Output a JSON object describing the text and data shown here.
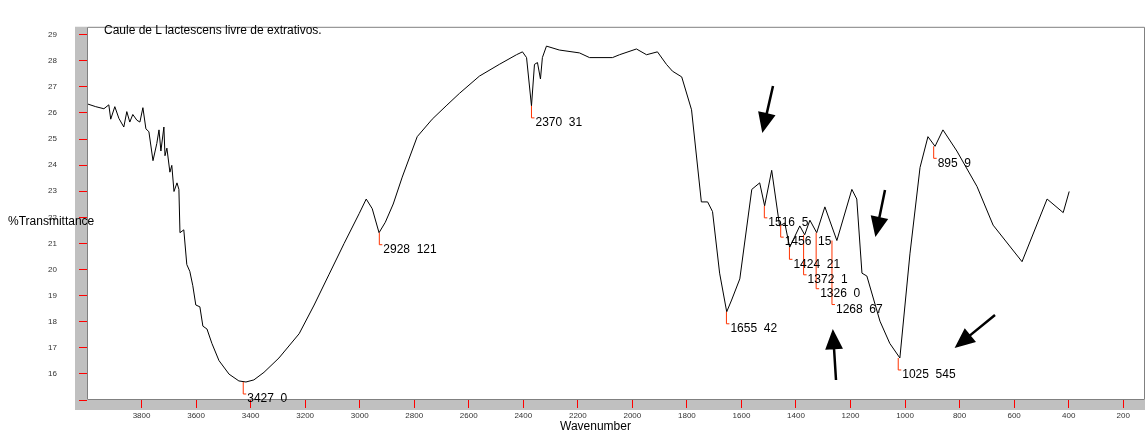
{
  "chart_data": {
    "type": "line",
    "title": "Caule de L lactescens livre de extrativos.",
    "xlabel": "Wavenumber",
    "ylabel": "%Transmittance",
    "x": [
      4000,
      3968,
      3938,
      3920,
      3913,
      3898,
      3883,
      3865,
      3854,
      3843,
      3832,
      3817,
      3806,
      3795,
      3784,
      3773,
      3758,
      3744,
      3736,
      3729,
      3718,
      3714,
      3707,
      3696,
      3689,
      3681,
      3670,
      3663,
      3659,
      3645,
      3634,
      3623,
      3612,
      3601,
      3586,
      3575,
      3560,
      3542,
      3516,
      3479,
      3443,
      3417,
      3388,
      3351,
      3296,
      3222,
      3167,
      3112,
      3057,
      3002,
      2976,
      2954,
      2929,
      2906,
      2877,
      2844,
      2789,
      2734,
      2683,
      2634,
      2561,
      2488,
      2425,
      2403,
      2388,
      2370,
      2359,
      2348,
      2337,
      2330,
      2315,
      2268,
      2194,
      2157,
      2073,
      2047,
      1985,
      1948,
      1908,
      1875,
      1853,
      1819,
      1783,
      1747,
      1724,
      1706,
      1680,
      1654,
      1636,
      1606,
      1562,
      1533,
      1515,
      1489,
      1460,
      1441,
      1423,
      1386,
      1368,
      1349,
      1324,
      1294,
      1250,
      1195,
      1177,
      1158,
      1140,
      1092,
      1056,
      1019,
      982,
      945,
      916,
      890,
      861,
      810,
      736,
      677,
      571,
      479,
      420,
      398
    ],
    "series": [
      {
        "color": "#000000",
        "values": [
          26.35,
          26.24,
          26.16,
          26.31,
          25.76,
          26.24,
          25.79,
          25.46,
          26.05,
          25.65,
          25.94,
          25.72,
          25.65,
          26.2,
          25.39,
          25.28,
          24.17,
          24.83,
          25.35,
          24.54,
          25.46,
          24.36,
          24.65,
          23.73,
          23.99,
          22.99,
          23.32,
          23.07,
          21.41,
          21.52,
          20.19,
          19.93,
          19.38,
          18.64,
          18.57,
          17.83,
          17.72,
          17.17,
          16.51,
          15.99,
          15.73,
          15.69,
          15.77,
          16.06,
          16.61,
          17.54,
          18.64,
          19.82,
          21.0,
          22.14,
          22.7,
          22.33,
          21.41,
          21.81,
          22.51,
          23.54,
          25.09,
          25.76,
          26.27,
          26.75,
          27.41,
          27.86,
          28.23,
          28.34,
          28.12,
          26.27,
          27.86,
          27.93,
          27.3,
          28.12,
          28.56,
          28.41,
          28.3,
          28.12,
          28.12,
          28.23,
          28.45,
          28.23,
          28.34,
          27.86,
          27.6,
          27.38,
          26.12,
          22.59,
          22.59,
          22.22,
          19.86,
          18.38,
          18.83,
          19.64,
          23.07,
          23.32,
          22.44,
          23.8,
          21.67,
          21.78,
          20.85,
          21.67,
          21.33,
          21.89,
          21.41,
          22.4,
          21.11,
          23.07,
          22.7,
          19.86,
          19.75,
          18.02,
          17.17,
          16.61,
          20.6,
          23.91,
          25.09,
          24.72,
          25.35,
          24.54,
          23.18,
          21.7,
          20.3,
          22.7,
          22.18,
          22.99
        ]
      }
    ],
    "xlim": [
      4000,
      120
    ],
    "xticks": [
      3800,
      3600,
      3400,
      3200,
      3000,
      2800,
      2600,
      2400,
      2200,
      2000,
      1800,
      1600,
      1400,
      1200,
      1000,
      800,
      600,
      400,
      200
    ],
    "ylim": [
      15,
      29.3
    ],
    "yticks": [
      {
        "value": 15,
        "label": null
      },
      16,
      17,
      18,
      19,
      20,
      21,
      22,
      23,
      24,
      25,
      26,
      27,
      28,
      29
    ],
    "grid": false,
    "legend": false,
    "marker": "none",
    "line_style": "solid",
    "annotations": [
      {
        "text": "3427  0",
        "x": 3427,
        "y": 15.69
      },
      {
        "text": "2928  121",
        "x": 2928,
        "y": 21.41
      },
      {
        "text": "2370  31",
        "x": 2370,
        "y": 26.27
      },
      {
        "text": "1655  42",
        "x": 1655,
        "y": 18.38
      },
      {
        "text": "1516  5",
        "x": 1516,
        "y": 22.44
      },
      {
        "text": "1456  15",
        "x": 1456,
        "y": 21.7
      },
      {
        "text": "1424  21",
        "x": 1424,
        "y": 20.85
      },
      {
        "text": "1372  1",
        "x": 1372,
        "y": 21.33
      },
      {
        "text": "1326  0",
        "x": 1326,
        "y": 21.41
      },
      {
        "text": "1268  67",
        "x": 1268,
        "y": 21.11
      },
      {
        "text": "1025  545",
        "x": 1025,
        "y": 16.61
      },
      {
        "text": "895  9",
        "x": 895,
        "y": 24.72
      }
    ]
  }
}
